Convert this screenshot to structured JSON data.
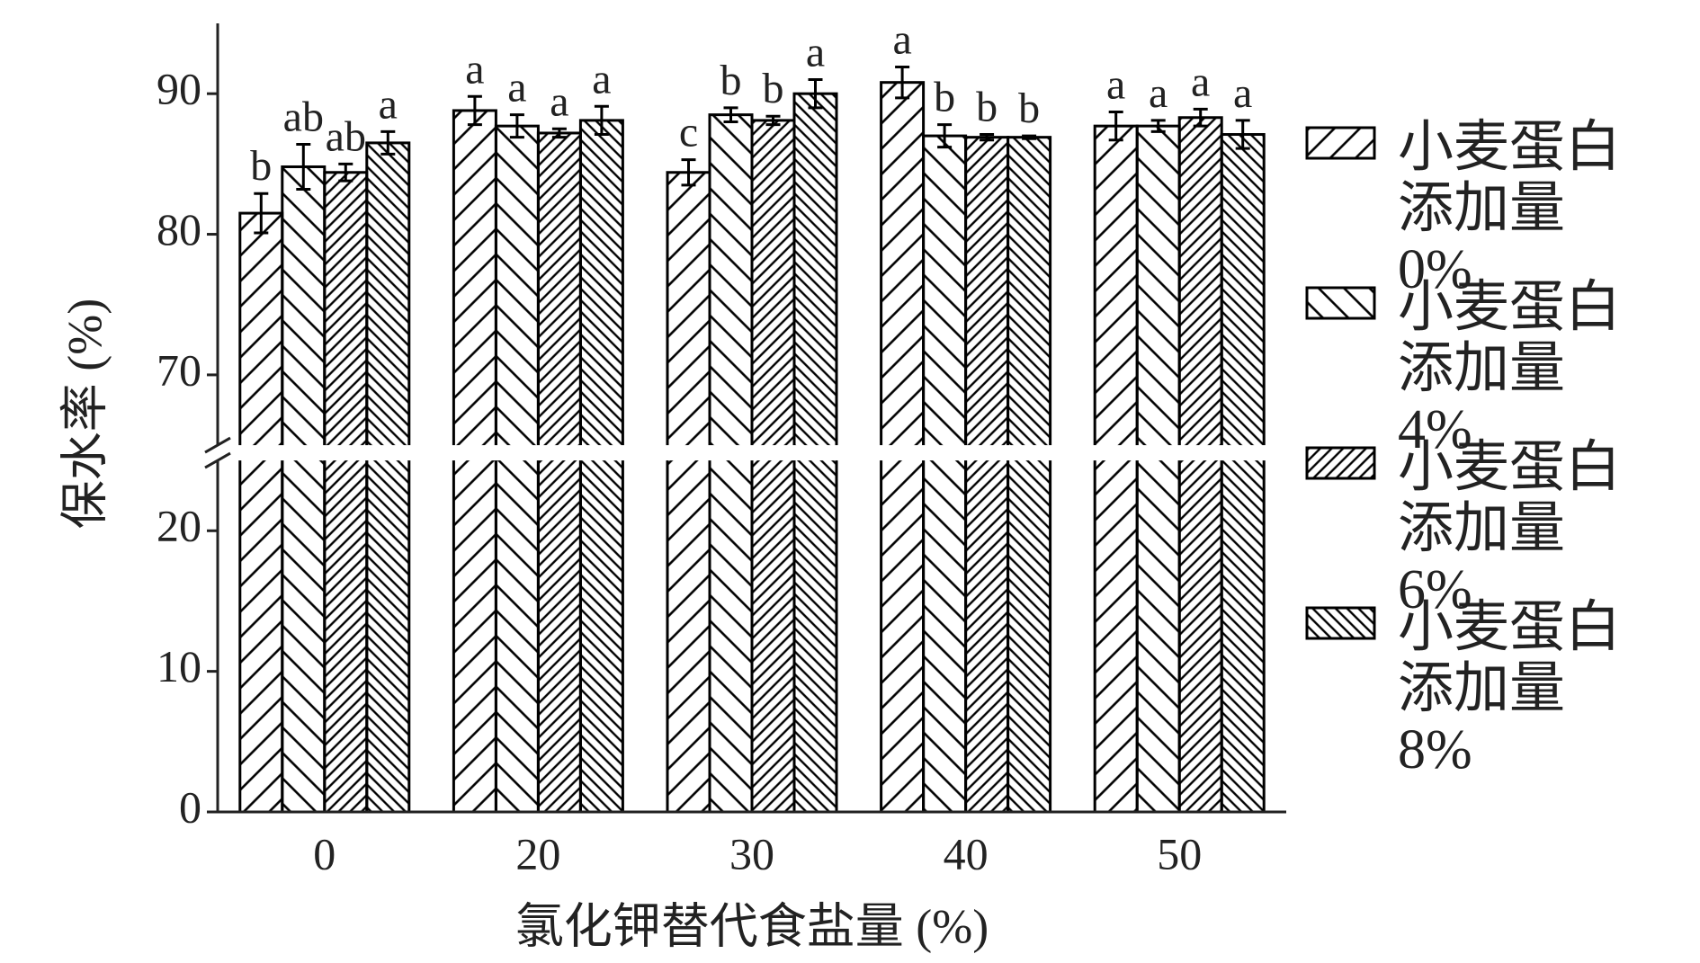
{
  "chart_data": {
    "type": "bar",
    "x_label": "氯化钾替代食盐量 (%)",
    "y_label": "保水率 (%)",
    "categories": [
      "0",
      "20",
      "30",
      "40",
      "50"
    ],
    "ylim": [
      0,
      95
    ],
    "ybreak": [
      25,
      65
    ],
    "yticks": [
      0,
      10,
      20,
      70,
      80,
      90
    ],
    "series": [
      {
        "name": "小麦蛋白添加量0%",
        "color": "#000000",
        "values": [
          81.5,
          88.8,
          84.4,
          90.8,
          87.7
        ],
        "errors": [
          1.4,
          1.0,
          0.9,
          1.1,
          1.0
        ],
        "labels": [
          "b",
          "a",
          "c",
          "a",
          "a"
        ]
      },
      {
        "name": "小麦蛋白添加量4%",
        "color": "#000000",
        "values": [
          84.8,
          87.7,
          88.5,
          87.0,
          87.7
        ],
        "errors": [
          1.6,
          0.8,
          0.5,
          0.8,
          0.4
        ],
        "labels": [
          "ab",
          "a",
          "b",
          "b",
          "a"
        ]
      },
      {
        "name": "小麦蛋白添加量6%",
        "color": "#000000",
        "values": [
          84.4,
          87.2,
          88.1,
          86.9,
          88.3
        ],
        "errors": [
          0.6,
          0.3,
          0.3,
          0.2,
          0.6
        ],
        "labels": [
          "ab",
          "a",
          "b",
          "b",
          "a"
        ]
      },
      {
        "name": "小麦蛋白添加量8%",
        "color": "#000000",
        "values": [
          86.5,
          88.1,
          90.0,
          86.9,
          87.1
        ],
        "errors": [
          0.8,
          1.0,
          1.0,
          0.1,
          1.0
        ],
        "labels": [
          "a",
          "a",
          "a",
          "b",
          "a"
        ]
      }
    ]
  }
}
